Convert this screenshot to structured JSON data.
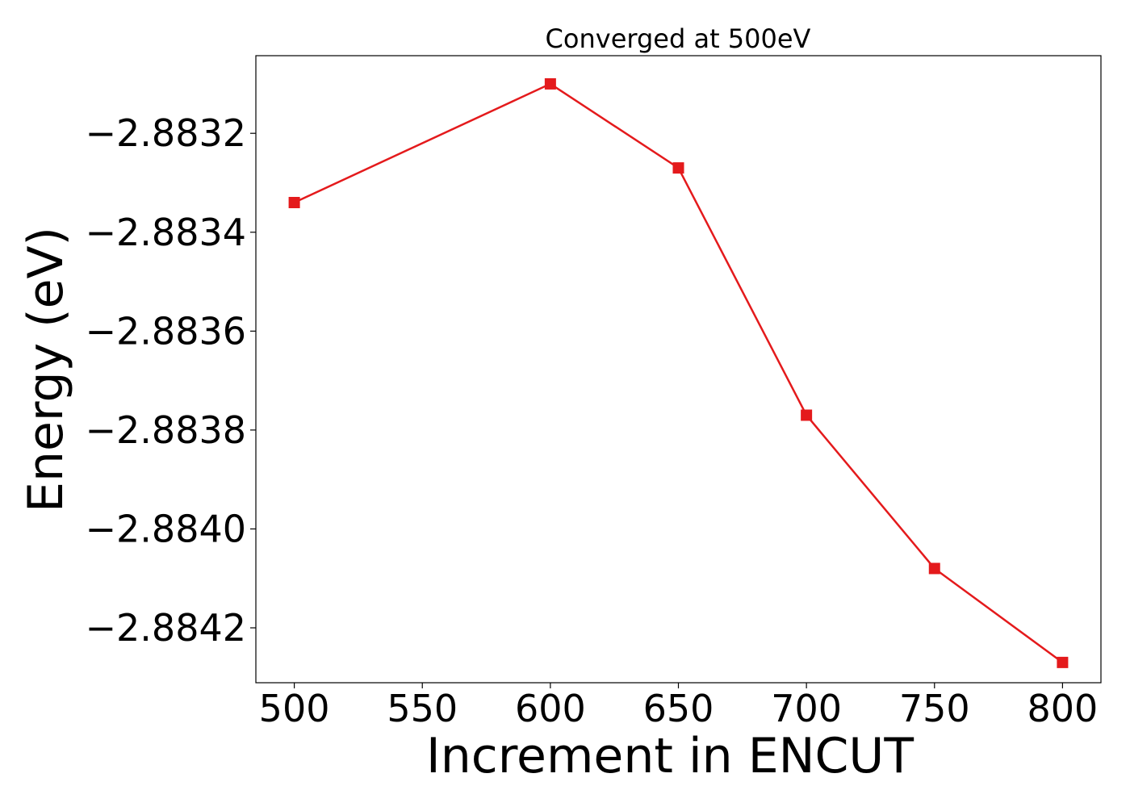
{
  "chart_data": {
    "type": "line",
    "title": "Converged at 500eV",
    "xlabel": "Increment in ENCUT",
    "ylabel": "Energy (eV)",
    "x": [
      500,
      600,
      650,
      700,
      750,
      800
    ],
    "series": [
      {
        "values": [
          -2.88334,
          -2.8831,
          -2.88327,
          -2.88377,
          -2.88408,
          -2.88427
        ],
        "color": "#e41a1c",
        "marker": "square"
      }
    ],
    "xticks": [
      500,
      550,
      600,
      650,
      700,
      750,
      800
    ],
    "xtick_labels": [
      "500",
      "550",
      "600",
      "650",
      "700",
      "750",
      "800"
    ],
    "yticks": [
      -2.8832,
      -2.8834,
      -2.8836,
      -2.8838,
      -2.884,
      -2.8842
    ],
    "ytick_labels": [
      "−2.8832",
      "−2.8834",
      "−2.8836",
      "−2.8838",
      "−2.8840",
      "−2.8842"
    ],
    "xlim": [
      485,
      815
    ],
    "ylim": [
      -2.884311,
      -2.883043
    ],
    "grid": false,
    "legend": false
  }
}
